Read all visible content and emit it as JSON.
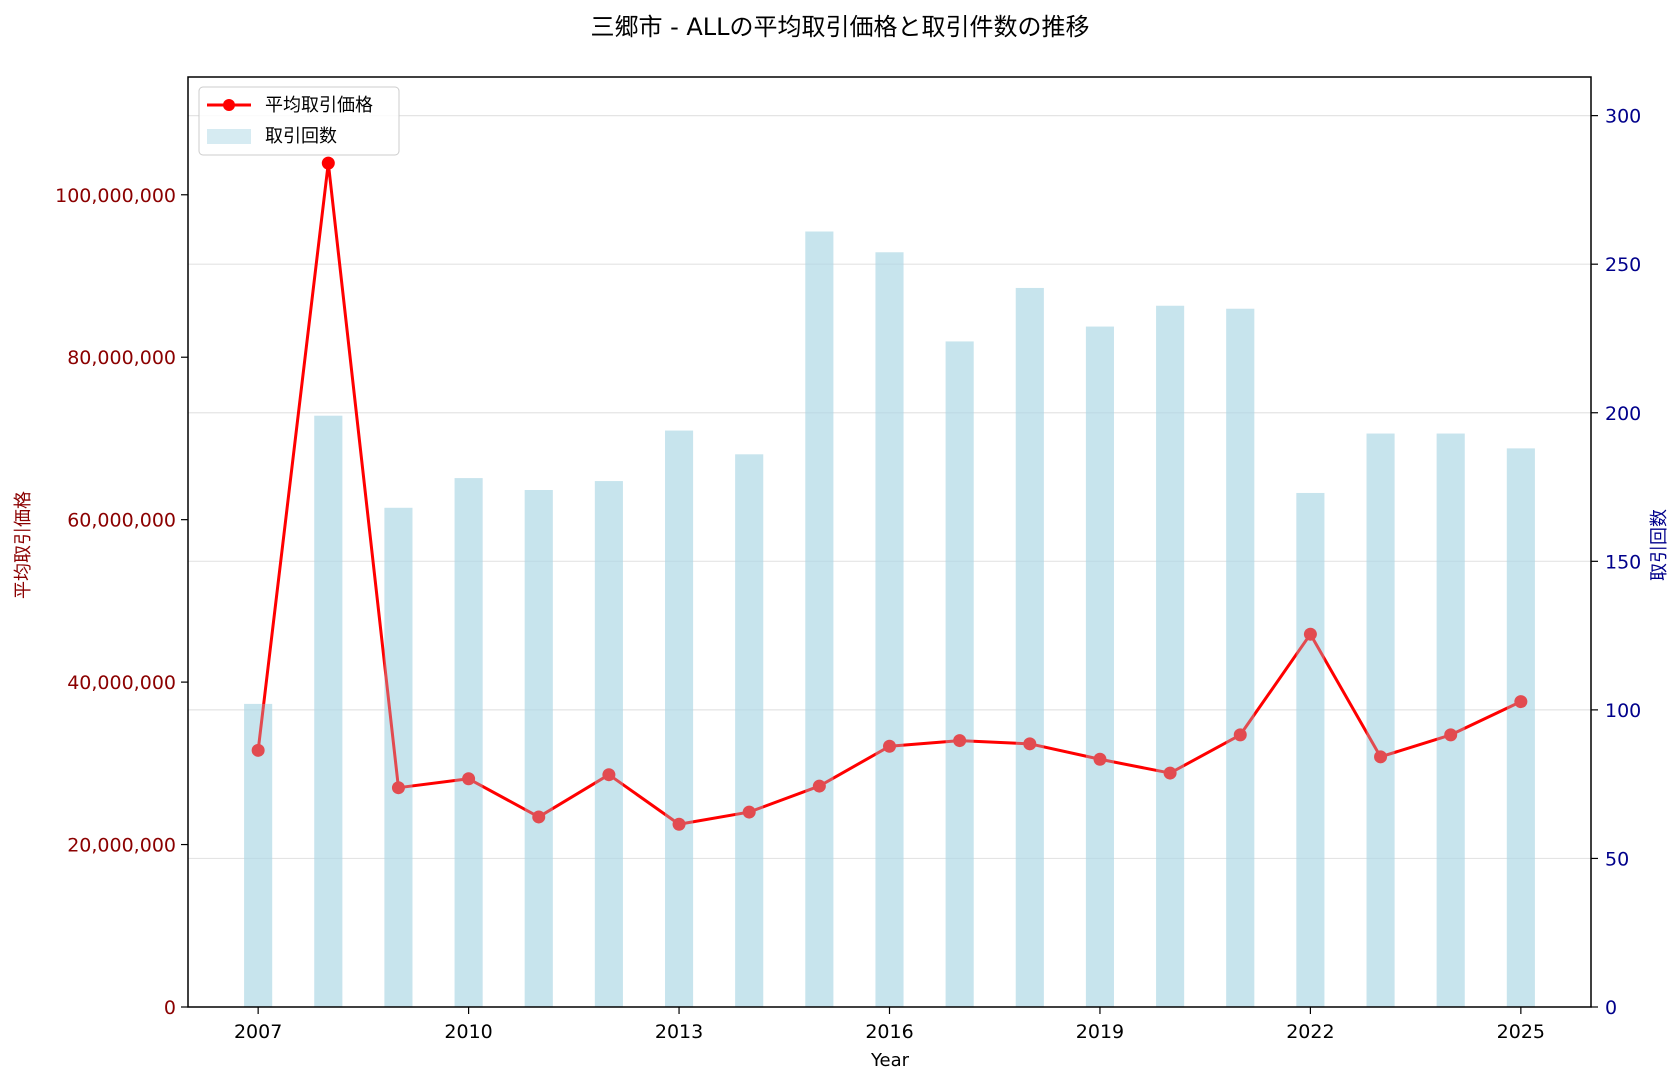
{
  "chart_data": {
    "type": "bar+line",
    "title": "三郷市 - ALLの平均取引価格と取引件数の推移",
    "xlabel": "Year",
    "ylabel_left": "平均取引価格",
    "ylabel_right": "取引回数",
    "x": [
      2007,
      2008,
      2009,
      2010,
      2011,
      2012,
      2013,
      2014,
      2015,
      2016,
      2017,
      2018,
      2019,
      2020,
      2021,
      2022,
      2023,
      2024,
      2025
    ],
    "x_ticks": [
      "2007",
      "2010",
      "2013",
      "2016",
      "2019",
      "2022",
      "2025"
    ],
    "xlim": [
      2006,
      2026
    ],
    "y_left_ticks": [
      "0",
      "20,000,000",
      "40,000,000",
      "60,000,000",
      "80,000,000",
      "100,000,000"
    ],
    "y_left_tick_values": [
      0,
      20000000,
      40000000,
      60000000,
      80000000,
      100000000
    ],
    "y_left_lim": [
      0,
      114500000
    ],
    "y_right_ticks": [
      "0",
      "50",
      "100",
      "150",
      "200",
      "250",
      "300"
    ],
    "y_right_tick_values": [
      0,
      50,
      100,
      150,
      200,
      250,
      300
    ],
    "y_right_lim": [
      0,
      313
    ],
    "grid": true,
    "legend_position": "top-left",
    "series": [
      {
        "name": "平均取引価格",
        "kind": "line",
        "axis": "left",
        "color": "#ff0000",
        "values": [
          31600000,
          103900000,
          27000000,
          28100000,
          23400000,
          28600000,
          22500000,
          24000000,
          27200000,
          32100000,
          32800000,
          32400000,
          30500000,
          28800000,
          33500000,
          45900000,
          30800000,
          33500000,
          37600000
        ]
      },
      {
        "name": "取引回数",
        "kind": "bar",
        "axis": "right",
        "color": "#add8e6",
        "values": [
          102,
          199,
          168,
          178,
          174,
          177,
          194,
          186,
          261,
          254,
          224,
          242,
          229,
          236,
          235,
          173,
          193,
          193,
          188
        ]
      }
    ]
  }
}
